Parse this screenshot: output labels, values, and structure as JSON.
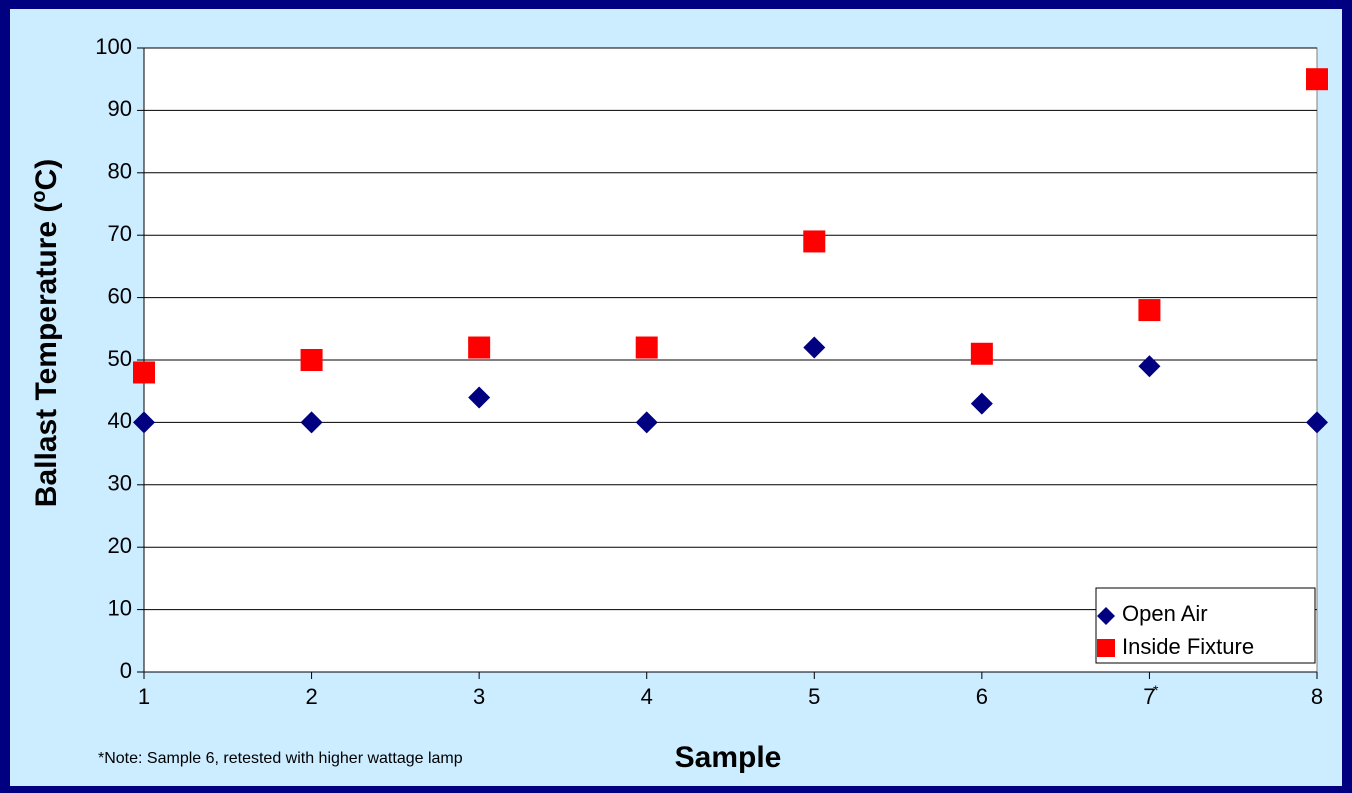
{
  "chart_data": {
    "type": "scatter",
    "title": "",
    "xlabel": "Sample",
    "ylabel_main": "Ballast Temperature (",
    "ylabel_sup": "o",
    "ylabel_end": "C)",
    "x": [
      1,
      2,
      3,
      4,
      5,
      6,
      7,
      8
    ],
    "x_tick_labels": [
      "1",
      "2",
      "3",
      "4",
      "5",
      "6",
      "7",
      "8"
    ],
    "y_ticks": [
      "0",
      "10",
      "20",
      "30",
      "40",
      "50",
      "60",
      "70",
      "80",
      "90",
      "100"
    ],
    "xlim": [
      1,
      8
    ],
    "ylim": [
      0,
      100
    ],
    "grid": "horizontal",
    "legend_position": "bottom-right",
    "series": [
      {
        "name": "Open Air",
        "marker": "diamond",
        "color": "#000080",
        "values": [
          40,
          40,
          44,
          40,
          52,
          43,
          49,
          40
        ]
      },
      {
        "name": "Inside Fixture",
        "marker": "square",
        "color": "#FF0000",
        "values": [
          48,
          50,
          52,
          52,
          69,
          51,
          58,
          95
        ]
      }
    ],
    "annotations": {
      "asterisk_marker": "*",
      "asterisk_at_x": 7,
      "note": "*Note: Sample 6, retested with higher wattage lamp"
    }
  },
  "colors": {
    "background_border": "#000080",
    "plot_background": "#CCECFF"
  }
}
